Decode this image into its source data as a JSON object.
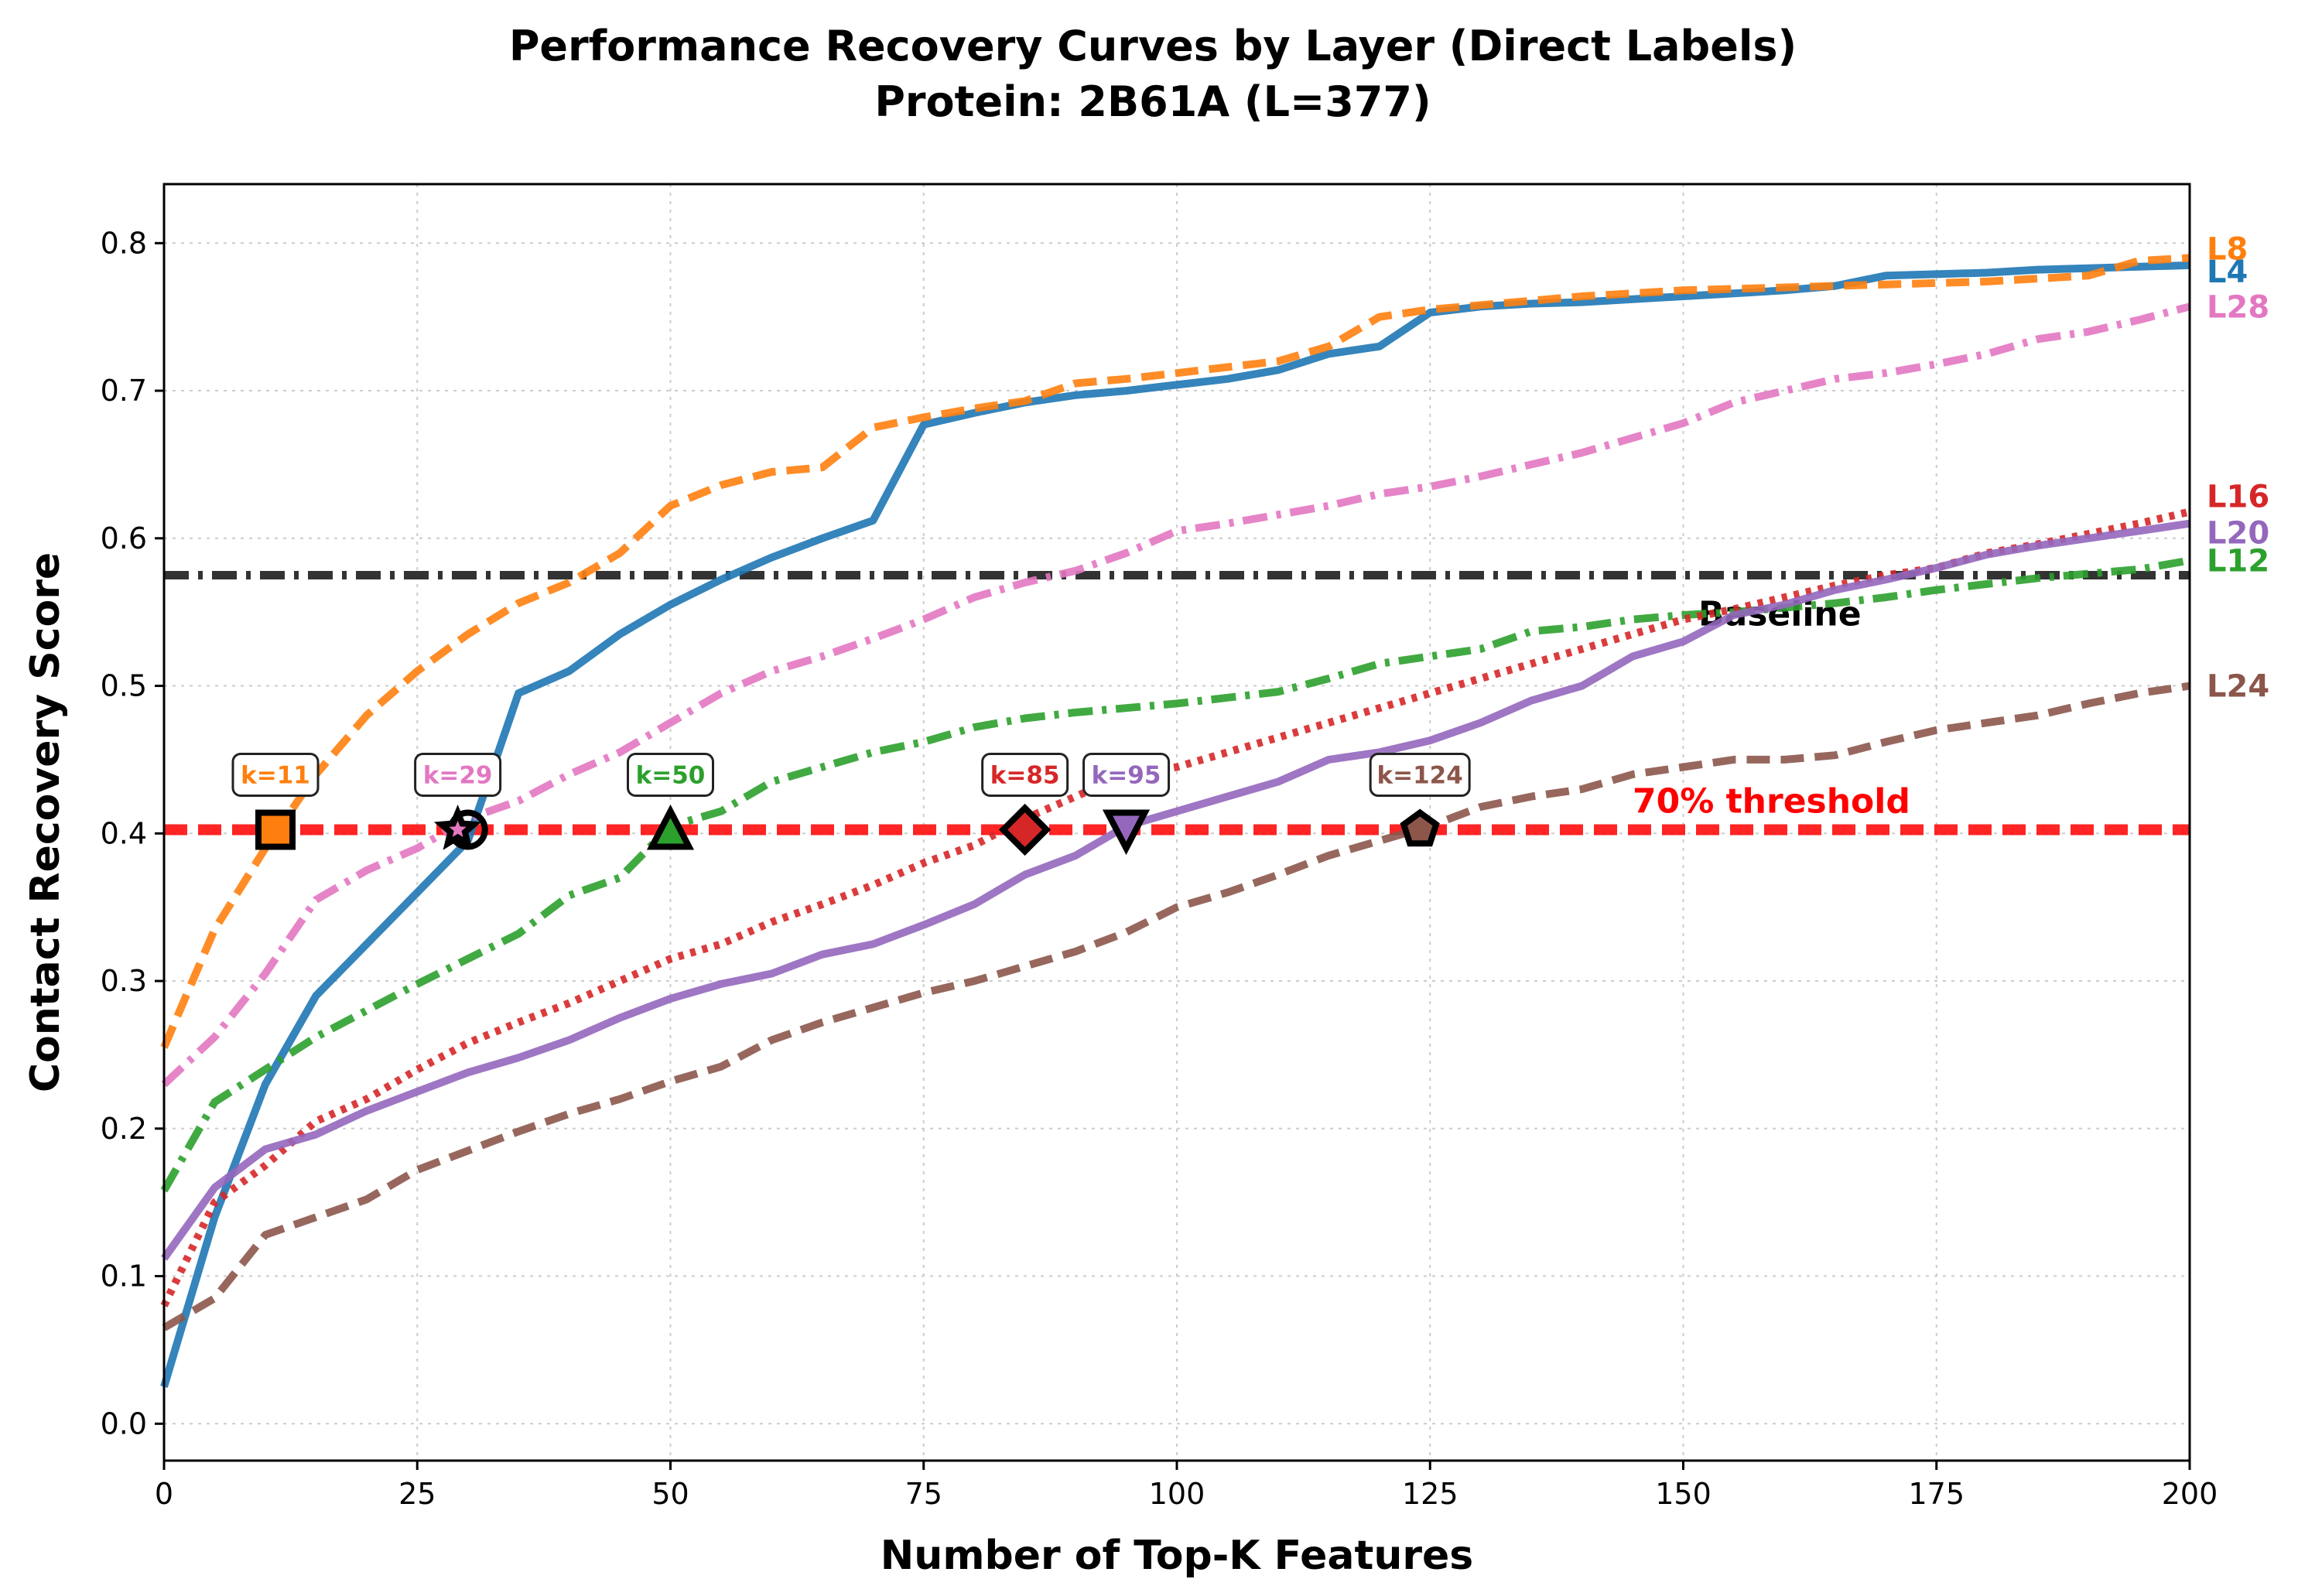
{
  "chart_data": {
    "type": "line",
    "title": "Performance Recovery Curves by Layer (Direct Labels)",
    "subtitle": "Protein: 2B61A (L=377)",
    "xlabel": "Number of Top-K Features",
    "ylabel": "Contact Recovery Score",
    "xlim": [
      0,
      200
    ],
    "ylim": [
      -0.025,
      0.84
    ],
    "xticks": [
      0,
      25,
      50,
      75,
      100,
      125,
      150,
      175,
      200
    ],
    "yticks": [
      0.0,
      0.1,
      0.2,
      0.3,
      0.4,
      0.5,
      0.6,
      0.7,
      0.8
    ],
    "grid": true,
    "x": [
      0,
      5,
      10,
      15,
      20,
      25,
      30,
      35,
      40,
      45,
      50,
      55,
      60,
      65,
      70,
      75,
      80,
      85,
      90,
      95,
      100,
      105,
      110,
      115,
      120,
      125,
      130,
      135,
      140,
      145,
      150,
      155,
      160,
      165,
      170,
      175,
      180,
      185,
      190,
      195,
      200
    ],
    "series": [
      {
        "name": "L4",
        "color": "#1f77b4",
        "style": "solid",
        "values": [
          0.025,
          0.14,
          0.23,
          0.29,
          0.325,
          0.36,
          0.395,
          0.495,
          0.51,
          0.535,
          0.555,
          0.572,
          0.587,
          0.6,
          0.612,
          0.677,
          0.685,
          0.692,
          0.697,
          0.7,
          0.704,
          0.708,
          0.714,
          0.725,
          0.73,
          0.753,
          0.757,
          0.759,
          0.76,
          0.762,
          0.764,
          0.766,
          0.768,
          0.771,
          0.778,
          0.779,
          0.78,
          0.782,
          0.783,
          0.784,
          0.785
        ]
      },
      {
        "name": "L8",
        "color": "#ff7f0e",
        "style": "dashed",
        "values": [
          0.255,
          0.335,
          0.39,
          0.44,
          0.48,
          0.51,
          0.535,
          0.556,
          0.57,
          0.59,
          0.622,
          0.636,
          0.645,
          0.648,
          0.675,
          0.682,
          0.688,
          0.693,
          0.705,
          0.708,
          0.712,
          0.716,
          0.72,
          0.73,
          0.75,
          0.755,
          0.758,
          0.761,
          0.764,
          0.766,
          0.768,
          0.769,
          0.77,
          0.771,
          0.772,
          0.773,
          0.774,
          0.776,
          0.778,
          0.788,
          0.79
        ]
      },
      {
        "name": "L12",
        "color": "#2ca02c",
        "style": "dashdot",
        "values": [
          0.158,
          0.218,
          0.24,
          0.262,
          0.28,
          0.298,
          0.315,
          0.332,
          0.358,
          0.37,
          0.405,
          0.415,
          0.435,
          0.445,
          0.455,
          0.462,
          0.472,
          0.478,
          0.482,
          0.485,
          0.488,
          0.492,
          0.496,
          0.505,
          0.515,
          0.52,
          0.525,
          0.537,
          0.54,
          0.545,
          0.548,
          0.55,
          0.553,
          0.556,
          0.56,
          0.565,
          0.569,
          0.573,
          0.576,
          0.579,
          0.585
        ]
      },
      {
        "name": "L16",
        "color": "#d62728",
        "style": "dotted",
        "values": [
          0.08,
          0.15,
          0.175,
          0.205,
          0.22,
          0.24,
          0.258,
          0.272,
          0.285,
          0.3,
          0.315,
          0.325,
          0.34,
          0.352,
          0.365,
          0.38,
          0.392,
          0.41,
          0.425,
          0.44,
          0.445,
          0.455,
          0.465,
          0.475,
          0.485,
          0.495,
          0.505,
          0.515,
          0.525,
          0.535,
          0.545,
          0.552,
          0.56,
          0.568,
          0.575,
          0.58,
          0.59,
          0.596,
          0.603,
          0.61,
          0.618
        ]
      },
      {
        "name": "L20",
        "color": "#9467bd",
        "style": "solid",
        "values": [
          0.112,
          0.16,
          0.186,
          0.196,
          0.212,
          0.225,
          0.238,
          0.248,
          0.26,
          0.275,
          0.288,
          0.298,
          0.305,
          0.318,
          0.325,
          0.338,
          0.352,
          0.372,
          0.385,
          0.405,
          0.415,
          0.425,
          0.435,
          0.45,
          0.455,
          0.463,
          0.475,
          0.49,
          0.5,
          0.52,
          0.53,
          0.548,
          0.555,
          0.565,
          0.572,
          0.58,
          0.589,
          0.595,
          0.6,
          0.605,
          0.61
        ]
      },
      {
        "name": "L24",
        "color": "#8c564b",
        "style": "dashed",
        "values": [
          0.065,
          0.085,
          0.128,
          0.14,
          0.152,
          0.172,
          0.185,
          0.198,
          0.21,
          0.22,
          0.232,
          0.242,
          0.26,
          0.272,
          0.282,
          0.292,
          0.3,
          0.31,
          0.32,
          0.333,
          0.35,
          0.36,
          0.372,
          0.385,
          0.395,
          0.405,
          0.418,
          0.425,
          0.43,
          0.44,
          0.445,
          0.45,
          0.45,
          0.453,
          0.462,
          0.47,
          0.475,
          0.48,
          0.488,
          0.495,
          0.5
        ]
      },
      {
        "name": "L28",
        "color": "#e377c2",
        "style": "dashdot",
        "values": [
          0.23,
          0.262,
          0.305,
          0.355,
          0.375,
          0.39,
          0.41,
          0.422,
          0.44,
          0.455,
          0.475,
          0.495,
          0.51,
          0.52,
          0.532,
          0.545,
          0.56,
          0.57,
          0.578,
          0.59,
          0.605,
          0.61,
          0.616,
          0.622,
          0.63,
          0.635,
          0.642,
          0.65,
          0.658,
          0.668,
          0.678,
          0.692,
          0.7,
          0.708,
          0.712,
          0.718,
          0.725,
          0.735,
          0.74,
          0.748,
          0.757
        ]
      }
    ],
    "reference_lines": [
      {
        "label": "Baseline",
        "value": 0.575,
        "color": "#333333",
        "style": "dashdot"
      },
      {
        "label": "70% threshold",
        "value": 0.4025,
        "color": "#ff0000",
        "style": "dashed"
      }
    ],
    "threshold_markers": [
      {
        "series": "L8",
        "k": 11,
        "label": "k=11",
        "y": 0.4025,
        "color": "#ff7f0e",
        "marker": "square"
      },
      {
        "series": "L4",
        "k": 30,
        "label": "",
        "y": 0.4025,
        "color": "#1f77b4",
        "marker": "circle"
      },
      {
        "series": "L28",
        "k": 29,
        "label": "k=29",
        "y": 0.4025,
        "color": "#e377c2",
        "marker": "star"
      },
      {
        "series": "L12",
        "k": 50,
        "label": "k=50",
        "y": 0.4025,
        "color": "#2ca02c",
        "marker": "triangle-up"
      },
      {
        "series": "L16",
        "k": 85,
        "label": "k=85",
        "y": 0.4025,
        "color": "#d62728",
        "marker": "diamond"
      },
      {
        "series": "L20",
        "k": 95,
        "label": "k=95",
        "y": 0.4025,
        "color": "#9467bd",
        "marker": "triangle-down"
      },
      {
        "series": "L24",
        "k": 124,
        "label": "k=124",
        "y": 0.4025,
        "color": "#8c564b",
        "marker": "pentagon"
      }
    ]
  }
}
